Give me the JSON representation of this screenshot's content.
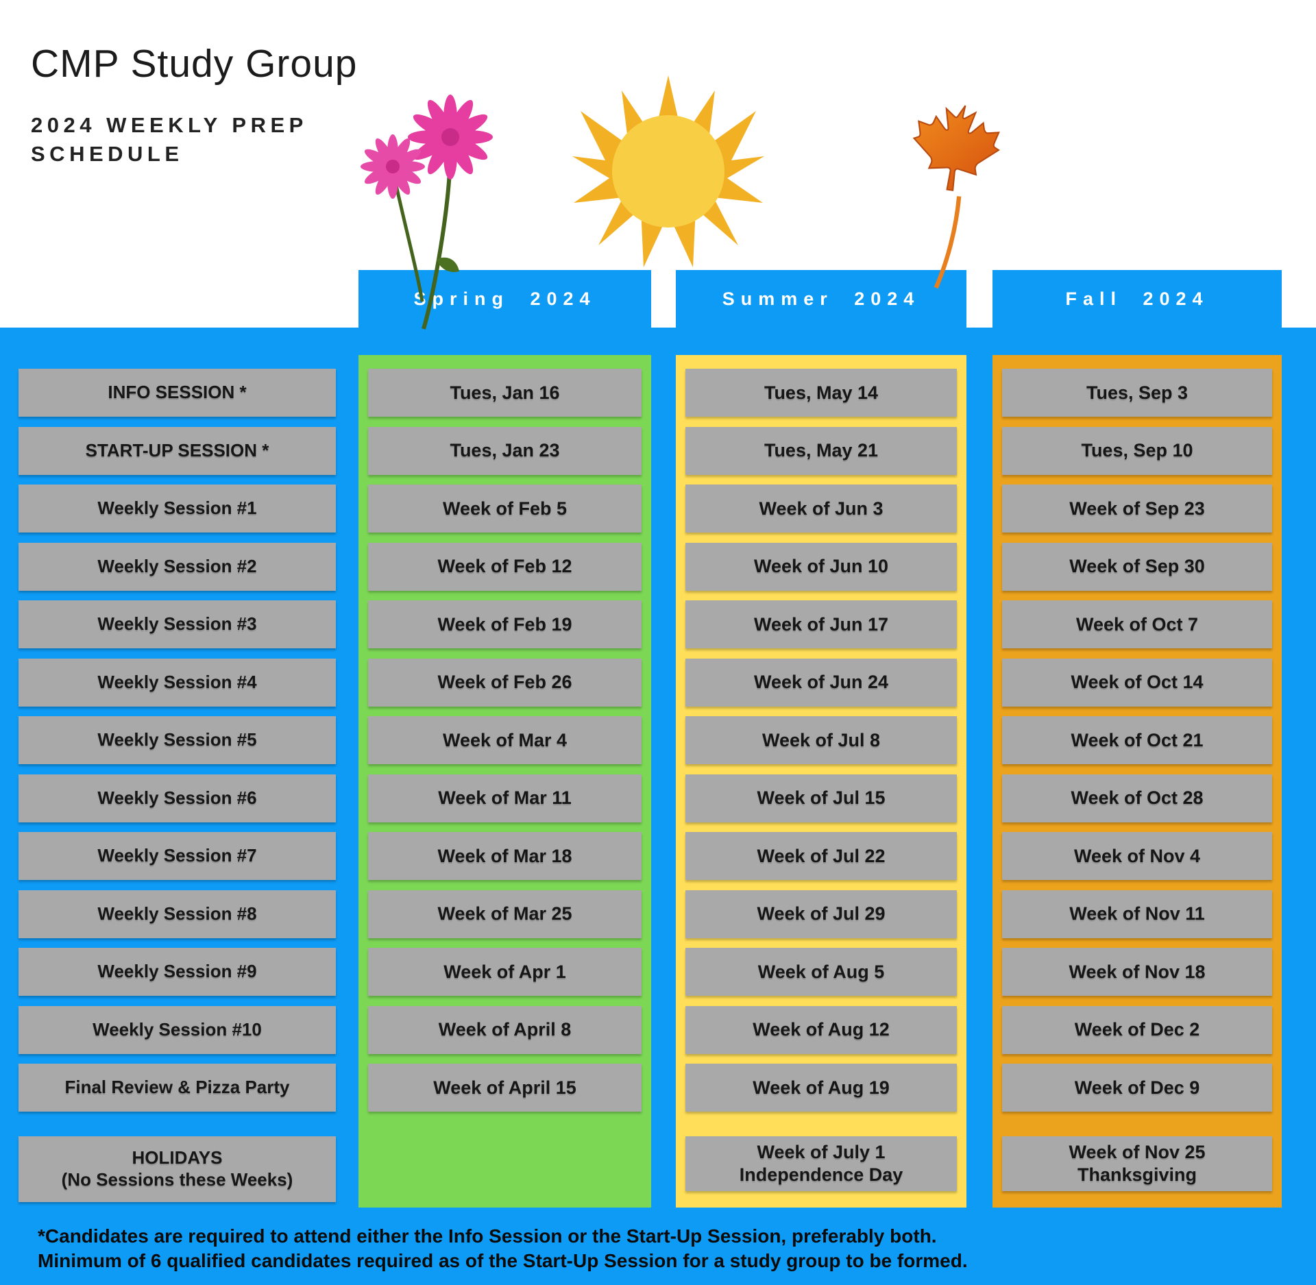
{
  "header": {
    "title": "CMP Study Group",
    "subtitle": "2024 WEEKLY PREP SCHEDULE"
  },
  "columns": [
    {
      "header": "Spring 2024",
      "icon": "flowers",
      "panel_color": "#7CD755"
    },
    {
      "header": "Summer 2024",
      "icon": "sun",
      "panel_color": "#FFDE59"
    },
    {
      "header": "Fall 2024",
      "icon": "maple-leaf",
      "panel_color": "#EBA21D"
    }
  ],
  "schedule": {
    "rows": [
      {
        "label": [
          "INFO SESSION *"
        ],
        "spring": [
          "Tues, Jan 16"
        ],
        "summer": [
          "Tues, May 14"
        ],
        "fall": [
          "Tues, Sep 3"
        ]
      },
      {
        "label": [
          "START-UP SESSION *"
        ],
        "spring": [
          "Tues, Jan 23"
        ],
        "summer": [
          "Tues, May 21"
        ],
        "fall": [
          "Tues, Sep 10"
        ]
      },
      {
        "label": [
          "Weekly Session #1"
        ],
        "spring": [
          "Week of Feb 5"
        ],
        "summer": [
          "Week of Jun 3"
        ],
        "fall": [
          "Week of Sep 23"
        ]
      },
      {
        "label": [
          "Weekly Session #2"
        ],
        "spring": [
          "Week of Feb 12"
        ],
        "summer": [
          "Week of Jun 10"
        ],
        "fall": [
          "Week of Sep 30"
        ]
      },
      {
        "label": [
          "Weekly Session #3"
        ],
        "spring": [
          "Week of Feb 19"
        ],
        "summer": [
          "Week of Jun 17"
        ],
        "fall": [
          "Week of Oct 7"
        ]
      },
      {
        "label": [
          "Weekly Session #4"
        ],
        "spring": [
          "Week of Feb 26"
        ],
        "summer": [
          "Week of Jun 24"
        ],
        "fall": [
          "Week of Oct 14"
        ]
      },
      {
        "label": [
          "Weekly Session #5"
        ],
        "spring": [
          "Week of Mar 4"
        ],
        "summer": [
          "Week of Jul 8"
        ],
        "fall": [
          "Week of Oct 21"
        ]
      },
      {
        "label": [
          "Weekly Session #6"
        ],
        "spring": [
          "Week of Mar 11"
        ],
        "summer": [
          "Week of Jul 15"
        ],
        "fall": [
          "Week of Oct 28"
        ]
      },
      {
        "label": [
          "Weekly Session #7"
        ],
        "spring": [
          "Week of Mar 18"
        ],
        "summer": [
          "Week of Jul 22"
        ],
        "fall": [
          "Week of Nov 4"
        ]
      },
      {
        "label": [
          "Weekly Session #8"
        ],
        "spring": [
          "Week of Mar 25"
        ],
        "summer": [
          "Week of Jul 29"
        ],
        "fall": [
          "Week of Nov 11"
        ]
      },
      {
        "label": [
          "Weekly Session #9"
        ],
        "spring": [
          "Week of Apr 1"
        ],
        "summer": [
          "Week of Aug 5"
        ],
        "fall": [
          "Week of Nov 18"
        ]
      },
      {
        "label": [
          "Weekly Session #10"
        ],
        "spring": [
          "Week of April 8"
        ],
        "summer": [
          "Week of Aug 12"
        ],
        "fall": [
          "Week of Dec 2"
        ]
      },
      {
        "label": [
          "Final Review & Pizza Party"
        ],
        "spring": [
          "Week of April 15"
        ],
        "summer": [
          "Week of Aug 19"
        ],
        "fall": [
          "Week of Dec 9"
        ]
      },
      {
        "label": [
          "HOLIDAYS",
          "(No Sessions these Weeks)"
        ],
        "spring": null,
        "summer": [
          "Week of July 1",
          "Independence Day"
        ],
        "fall": [
          "Week of Nov 25",
          "Thanksgiving"
        ],
        "special": true
      }
    ]
  },
  "footnote": "*Candidates are required to attend either the Info Session or the Start-Up Session, preferably both. Minimum of 6 qualified candidates required as of the Start-Up Session for a study group to be formed.",
  "colors": {
    "background_blue": "#0D9BF6",
    "spring_green": "#7CD755",
    "summer_yellow": "#FFDE59",
    "fall_orange": "#EBA21D",
    "cell_gray": "#A9A9A9",
    "tab_text": "#FFFFFF",
    "text_dark": "#161616"
  }
}
